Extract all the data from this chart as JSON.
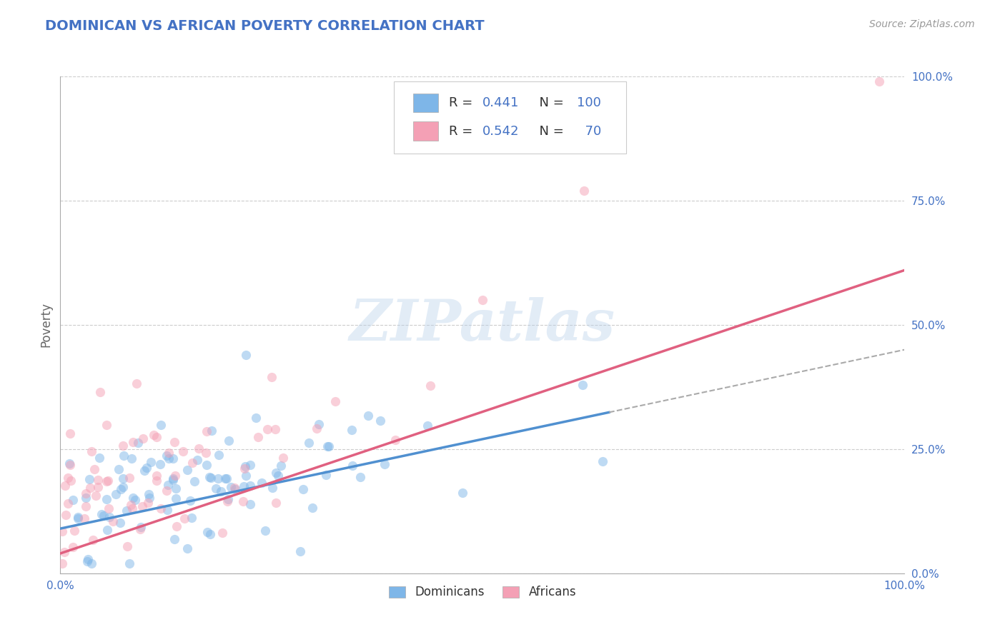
{
  "title": "DOMINICAN VS AFRICAN POVERTY CORRELATION CHART",
  "source_text": "Source: ZipAtlas.com",
  "ylabel": "Poverty",
  "ytick_labels": [
    "0.0%",
    "25.0%",
    "50.0%",
    "75.0%",
    "100.0%"
  ],
  "ytick_values": [
    0.0,
    0.25,
    0.5,
    0.75,
    1.0
  ],
  "xlim": [
    0.0,
    1.0
  ],
  "ylim": [
    0.0,
    1.0
  ],
  "dominicans": {
    "R": 0.441,
    "N": 100,
    "color": "#7eb6e8",
    "line_color": "#5090d0",
    "legend_label": "Dominicans"
  },
  "africans": {
    "R": 0.542,
    "N": 70,
    "color": "#f4a0b5",
    "line_color": "#e06080",
    "legend_label": "Africans"
  },
  "legend_R_color": "#4472c4",
  "legend_N_color": "#4472c4",
  "title_color": "#4472c4",
  "title_fontsize": 14,
  "source_fontsize": 10,
  "axis_label_color": "#666666",
  "tick_label_color": "#4472c4",
  "grid_color": "#cccccc",
  "background_color": "#ffffff",
  "seed": 42
}
